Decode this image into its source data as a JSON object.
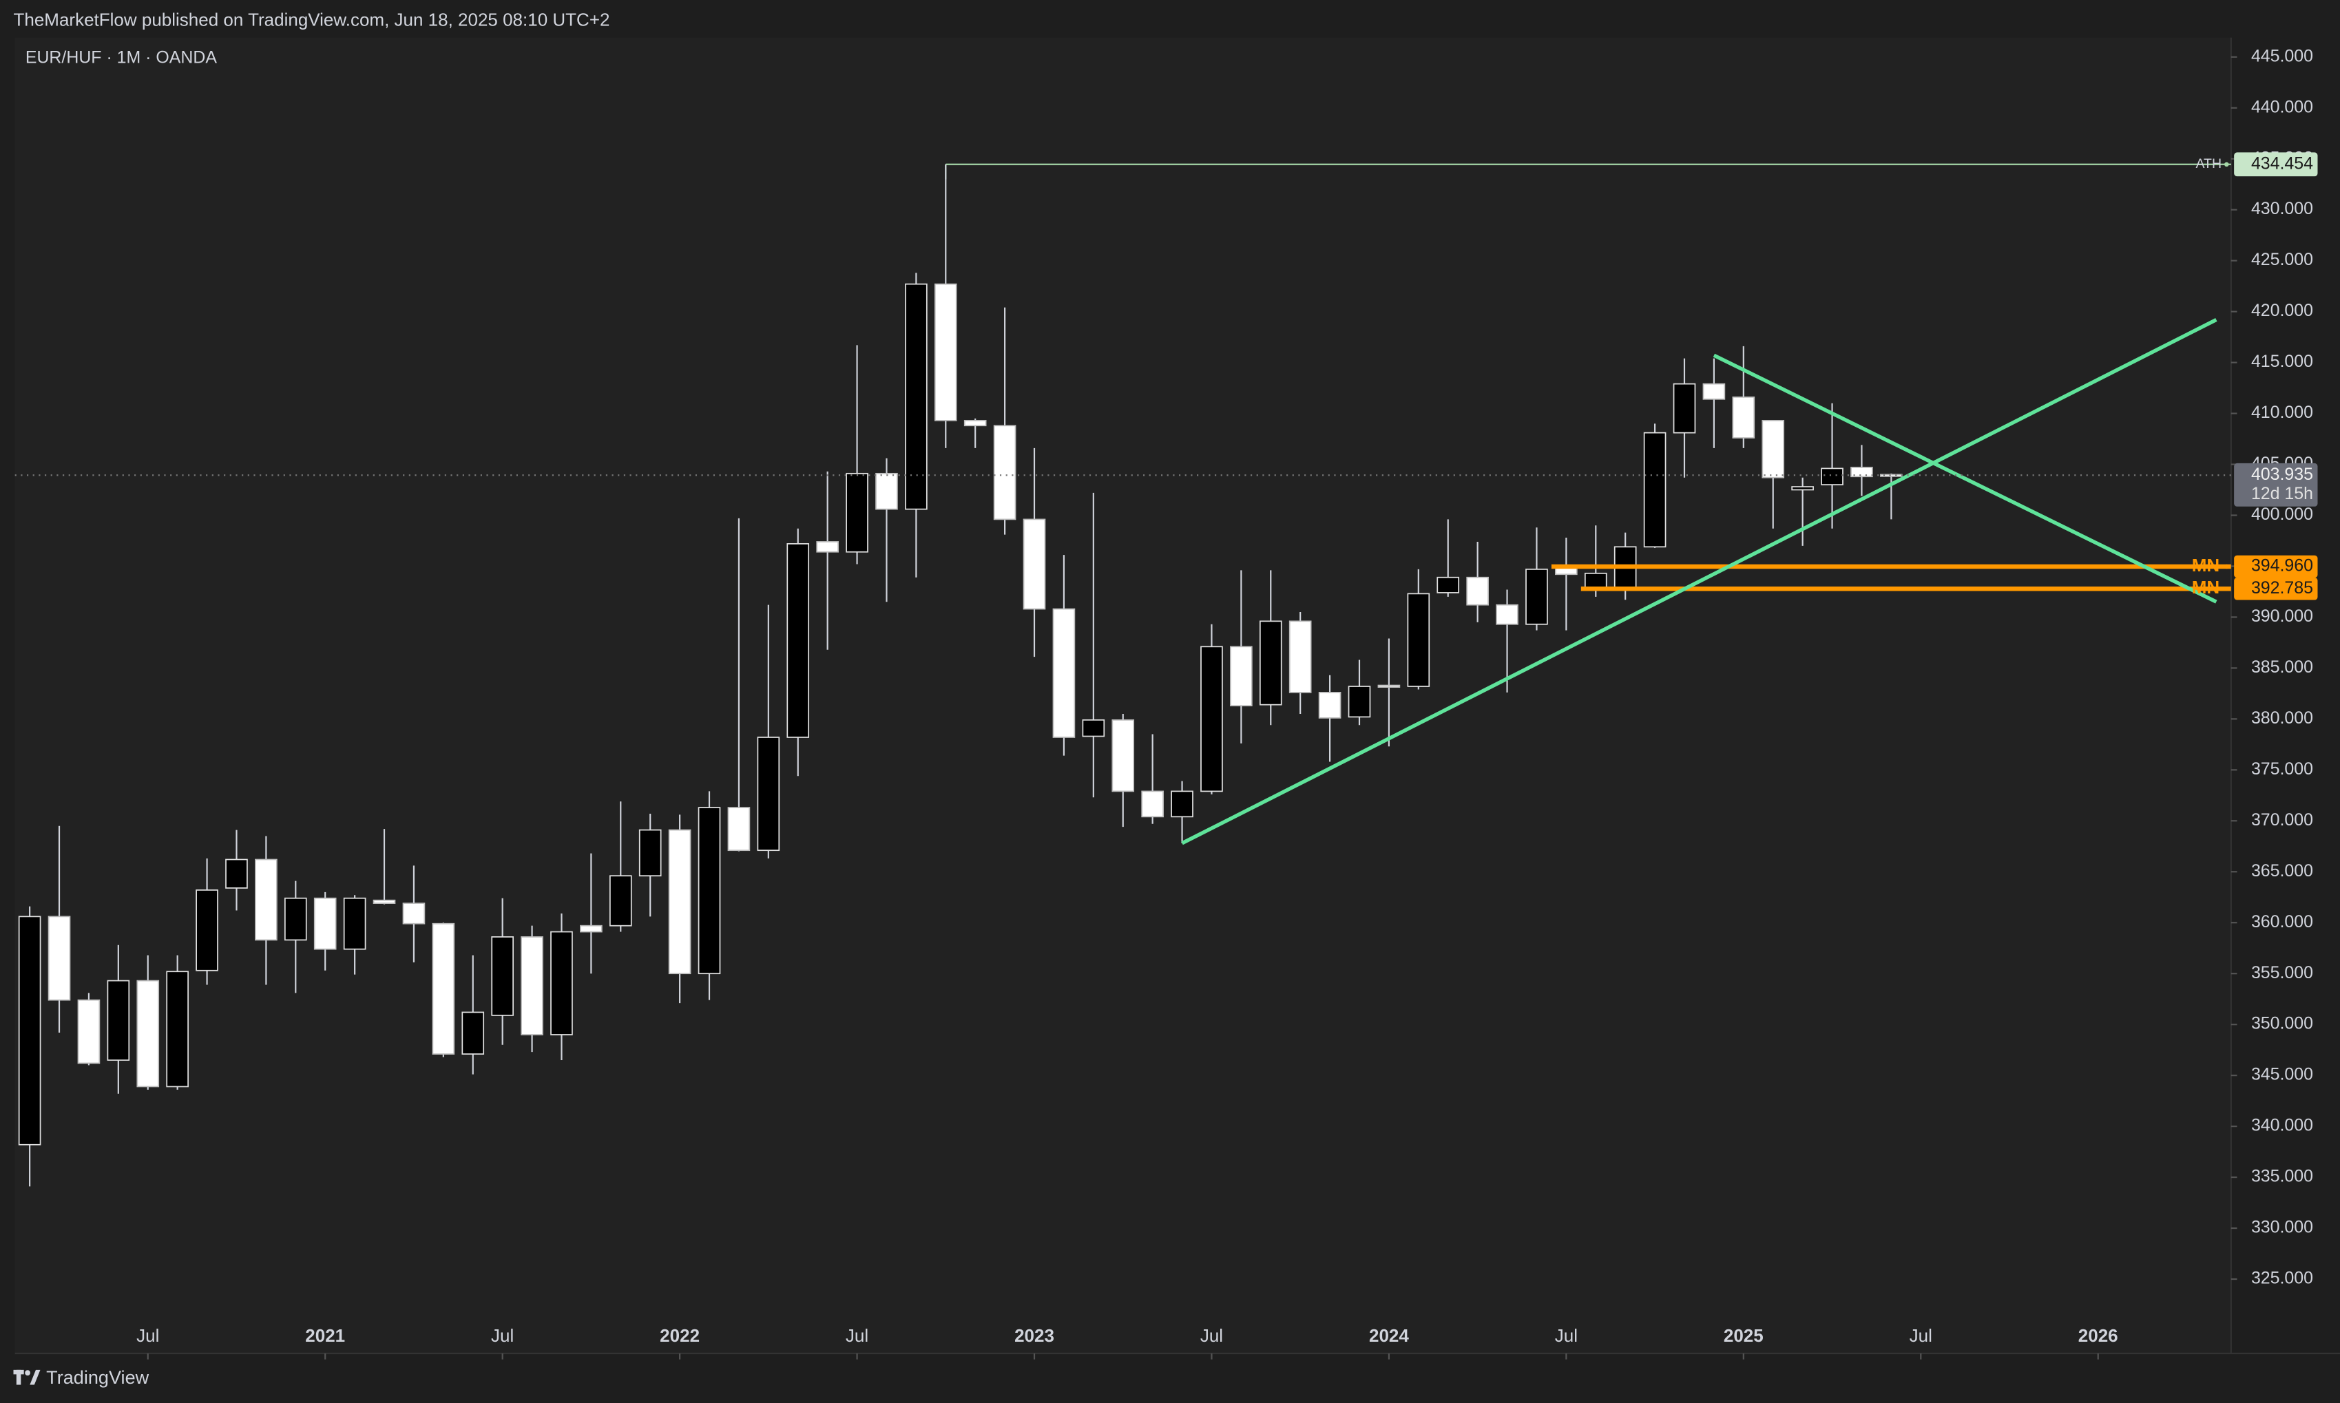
{
  "header": "TheMarketFlow published on TradingView.com, Jun 18, 2025 08:10 UTC+2",
  "footer": "TradingView",
  "chart_data": {
    "type": "candlestick",
    "title": "EUR/HUF · 1M · OANDA",
    "x": [
      "2020-03",
      "2020-04",
      "2020-05",
      "2020-06",
      "2020-07",
      "2020-08",
      "2020-09",
      "2020-10",
      "2020-11",
      "2020-12",
      "2021-01",
      "2021-02",
      "2021-03",
      "2021-04",
      "2021-05",
      "2021-06",
      "2021-07",
      "2021-08",
      "2021-09",
      "2021-10",
      "2021-11",
      "2021-12",
      "2022-01",
      "2022-02",
      "2022-03",
      "2022-04",
      "2022-05",
      "2022-06",
      "2022-07",
      "2022-08",
      "2022-09",
      "2022-10",
      "2022-11",
      "2022-12",
      "2023-01",
      "2023-02",
      "2023-03",
      "2023-04",
      "2023-05",
      "2023-06",
      "2023-07",
      "2023-08",
      "2023-09",
      "2023-10",
      "2023-11",
      "2023-12",
      "2024-01",
      "2024-02",
      "2024-03",
      "2024-04",
      "2024-05",
      "2024-06",
      "2024-07",
      "2024-08",
      "2024-09",
      "2024-10",
      "2024-11",
      "2024-12",
      "2025-01",
      "2025-02",
      "2025-03",
      "2025-04",
      "2025-05",
      "2025-06"
    ],
    "open": [
      338.2,
      360.6,
      352.4,
      346.5,
      354.3,
      343.9,
      355.3,
      363.4,
      366.2,
      358.3,
      362.4,
      357.4,
      362.2,
      361.9,
      359.9,
      347.1,
      350.9,
      358.6,
      349.0,
      359.7,
      359.7,
      364.6,
      369.1,
      355.0,
      371.3,
      367.1,
      378.2,
      397.4,
      396.4,
      404.1,
      400.6,
      422.7,
      409.3,
      408.8,
      399.6,
      390.8,
      378.3,
      379.9,
      372.9,
      370.4,
      372.9,
      387.1,
      381.4,
      389.6,
      382.6,
      380.2,
      383.3,
      383.2,
      392.4,
      393.9,
      391.2,
      389.3,
      394.9,
      392.7,
      392.7,
      396.9,
      408.1,
      412.9,
      411.6,
      409.3,
      402.5,
      403.0,
      404.7,
      404.0
    ],
    "high": [
      361.6,
      369.5,
      353.1,
      357.8,
      356.8,
      356.8,
      366.3,
      369.1,
      368.5,
      364.1,
      363.0,
      362.7,
      369.2,
      365.6,
      360.0,
      356.8,
      362.4,
      359.7,
      360.9,
      366.8,
      371.9,
      370.7,
      370.6,
      372.9,
      399.7,
      391.2,
      398.7,
      404.3,
      416.7,
      405.6,
      423.8,
      434.454,
      409.5,
      420.4,
      406.6,
      396.1,
      402.2,
      380.5,
      378.5,
      373.9,
      389.3,
      394.6,
      394.6,
      390.5,
      384.3,
      385.8,
      387.9,
      394.7,
      399.6,
      397.4,
      392.7,
      398.8,
      397.8,
      399.0,
      398.3,
      409.0,
      415.4,
      415.4,
      416.6,
      409.3,
      403.7,
      411.0,
      406.9,
      404.1
    ],
    "low": [
      334.1,
      349.2,
      346.0,
      343.2,
      343.6,
      343.6,
      353.9,
      361.2,
      353.9,
      353.1,
      355.3,
      354.9,
      361.8,
      356.1,
      346.8,
      345.1,
      348.0,
      347.3,
      346.5,
      355.0,
      359.1,
      360.6,
      352.1,
      352.4,
      367.0,
      366.3,
      374.4,
      386.8,
      395.2,
      391.5,
      393.9,
      406.6,
      406.6,
      398.1,
      386.1,
      376.4,
      372.3,
      369.4,
      369.7,
      367.8,
      372.6,
      377.6,
      379.4,
      380.5,
      375.8,
      379.4,
      377.3,
      382.9,
      392.0,
      389.5,
      382.6,
      388.7,
      388.7,
      392.0,
      391.7,
      396.8,
      403.7,
      406.6,
      406.6,
      398.7,
      397.0,
      398.7,
      401.9,
      399.6
    ],
    "close": [
      360.6,
      352.4,
      346.2,
      354.3,
      343.9,
      355.2,
      363.2,
      366.2,
      358.3,
      362.4,
      357.4,
      362.4,
      361.9,
      359.9,
      347.1,
      351.2,
      358.6,
      349.0,
      359.1,
      359.1,
      364.6,
      369.1,
      355.0,
      371.3,
      367.1,
      378.2,
      397.2,
      396.4,
      404.1,
      400.6,
      422.7,
      409.3,
      408.8,
      399.6,
      390.8,
      378.2,
      379.9,
      372.9,
      370.4,
      372.9,
      387.1,
      381.3,
      389.6,
      382.6,
      380.1,
      383.2,
      383.2,
      392.3,
      393.9,
      391.2,
      389.3,
      394.7,
      394.2,
      394.3,
      396.9,
      408.1,
      412.9,
      411.4,
      407.6,
      403.7,
      402.8,
      404.6,
      403.8,
      403.935
    ],
    "up_color": "#000000",
    "down_color": "#ffffff",
    "wick_color": "#d1d4dc",
    "countdown": "12d 15h",
    "xlim": [
      "2020-03",
      "2026-05"
    ],
    "xticks": [
      {
        "value": "2020-07",
        "label": "Jul"
      },
      {
        "value": "2021-01",
        "label": "2021"
      },
      {
        "value": "2021-07",
        "label": "Jul"
      },
      {
        "value": "2022-01",
        "label": "2022"
      },
      {
        "value": "2022-07",
        "label": "Jul"
      },
      {
        "value": "2023-01",
        "label": "2023"
      },
      {
        "value": "2023-07",
        "label": "Jul"
      },
      {
        "value": "2024-01",
        "label": "2024"
      },
      {
        "value": "2024-07",
        "label": "Jul"
      },
      {
        "value": "2025-01",
        "label": "2025"
      },
      {
        "value": "2025-07",
        "label": "Jul"
      },
      {
        "value": "2026-01",
        "label": "2026"
      }
    ],
    "ylim": [
      317.7,
      446.9
    ],
    "yticks": [
      {
        "value": 325,
        "label": "325.000"
      },
      {
        "value": 330,
        "label": "330.000"
      },
      {
        "value": 335,
        "label": "335.000"
      },
      {
        "value": 340,
        "label": "340.000"
      },
      {
        "value": 345,
        "label": "345.000"
      },
      {
        "value": 350,
        "label": "350.000"
      },
      {
        "value": 355,
        "label": "355.000"
      },
      {
        "value": 360,
        "label": "360.000"
      },
      {
        "value": 365,
        "label": "365.000"
      },
      {
        "value": 370,
        "label": "370.000"
      },
      {
        "value": 375,
        "label": "375.000"
      },
      {
        "value": 380,
        "label": "380.000"
      },
      {
        "value": 385,
        "label": "385.000"
      },
      {
        "value": 390,
        "label": "390.000"
      },
      {
        "value": 395,
        "label": "395.000"
      },
      {
        "value": 400,
        "label": "400.000"
      },
      {
        "value": 405,
        "label": "405.000"
      },
      {
        "value": 410,
        "label": "410.000"
      },
      {
        "value": 415,
        "label": "415.000"
      },
      {
        "value": 420,
        "label": "420.000"
      },
      {
        "value": 425,
        "label": "425.000"
      },
      {
        "value": 430,
        "label": "430.000"
      },
      {
        "value": 435,
        "label": "435.000"
      },
      {
        "value": 440,
        "label": "440.000"
      },
      {
        "value": 445,
        "label": "445.000"
      }
    ],
    "ath": {
      "label": "ATH",
      "value": 434.454,
      "x": "2022-10",
      "color": "#a5d6a7"
    },
    "levels": [
      {
        "label": "MN",
        "value": 394.96,
        "value_label": "394.960",
        "x": "2024-07",
        "color": "#ff9800"
      },
      {
        "label": "MN",
        "value": 392.785,
        "x": "2024-08",
        "color": "#ff9800"
      }
    ],
    "trendlines": [
      {
        "x": [
          "2023-06",
          "2026-05"
        ],
        "values": [
          367.8,
          419.2
        ],
        "color": "#5fe39a"
      },
      {
        "x": [
          "2024-12",
          "2026-05"
        ],
        "values": [
          415.7,
          391.5
        ],
        "color": "#5fe39a"
      }
    ]
  }
}
